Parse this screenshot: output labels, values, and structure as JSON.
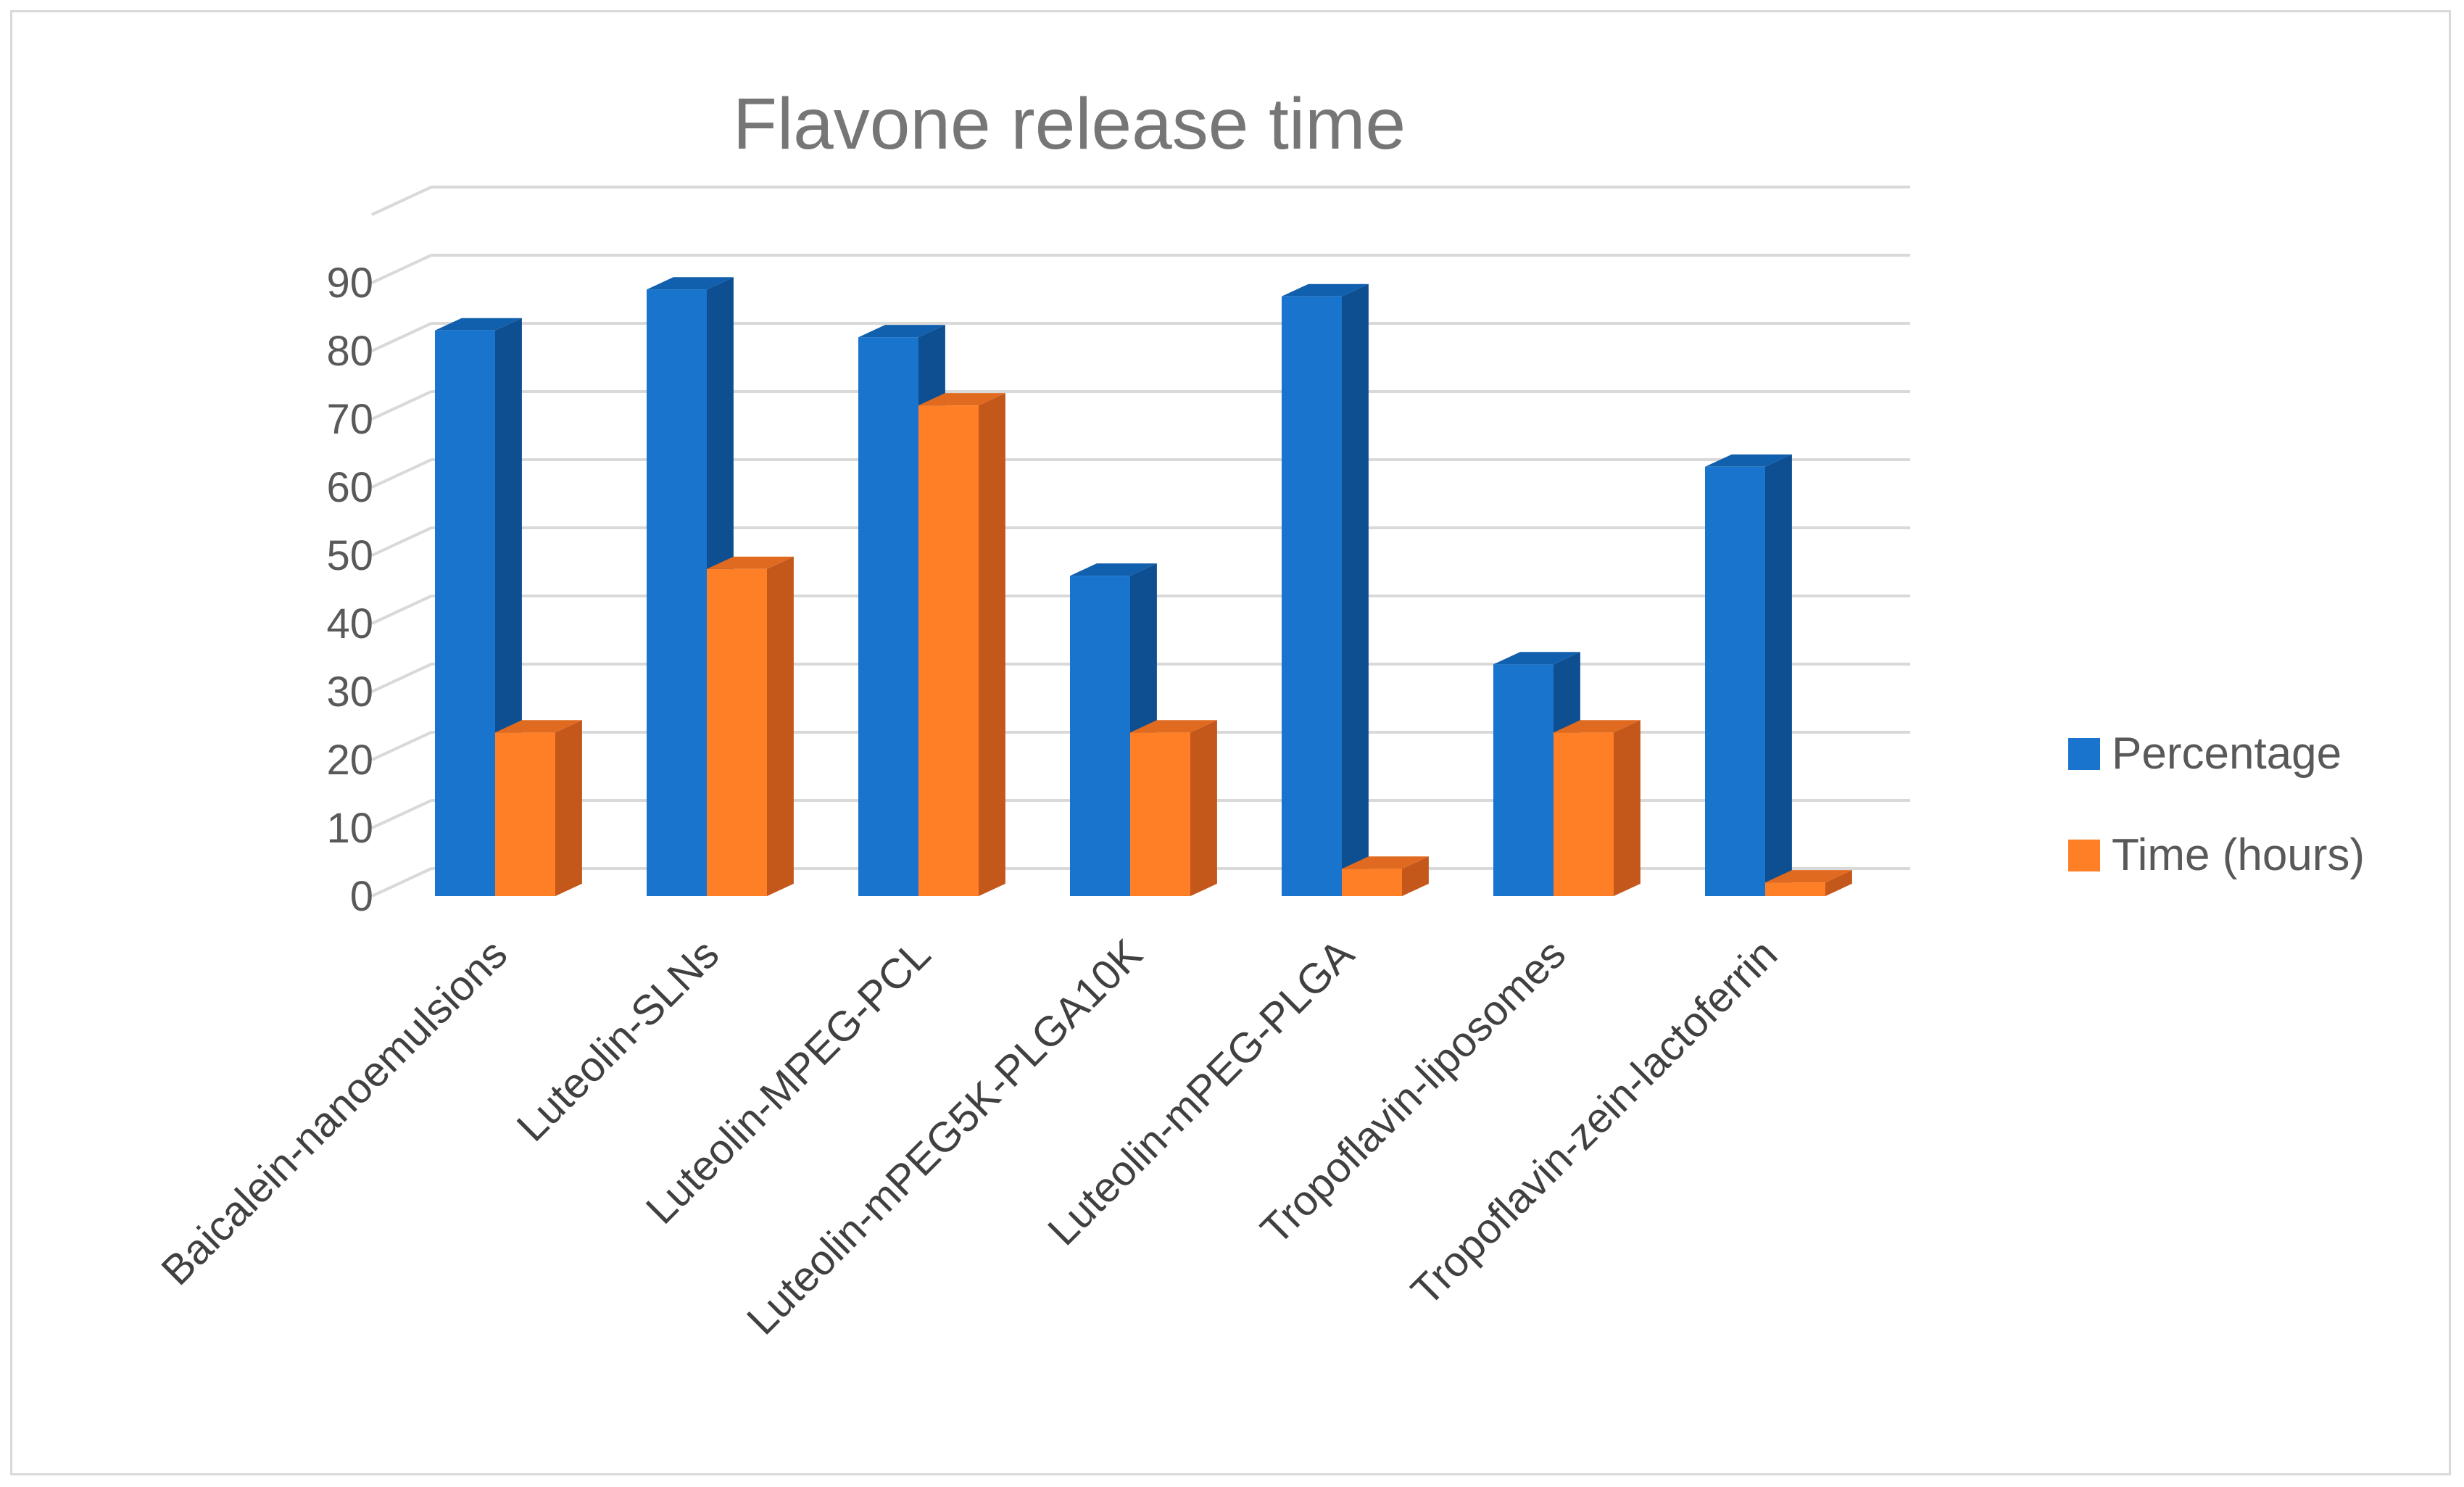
{
  "chart_data": {
    "type": "bar",
    "title": "Flavone release time",
    "categories": [
      "Baicalein-nanoemulsions",
      "Luteolin-SLNs",
      "Luteolin-MPEG-PCL",
      "Luteolin-mPEG5K-PLGA10K",
      "Luteolin-mPEG-PLGA",
      "Tropoflavin-liposomes",
      "Tropoflavin-zein-lactoferrin"
    ],
    "series": [
      {
        "name": "Percentage",
        "color": "#1874cd",
        "values": [
          83,
          89,
          82,
          47,
          88,
          34,
          63
        ]
      },
      {
        "name": "Time (hours)",
        "color": "#ff7f27",
        "values": [
          24,
          48,
          72,
          24,
          4,
          24,
          2
        ]
      }
    ],
    "yticks": [
      "0",
      "10",
      "20",
      "30",
      "40",
      "50",
      "60",
      "70",
      "80",
      "90"
    ],
    "ylim": [
      0,
      100
    ],
    "grid": true,
    "legend_position": "right",
    "style": "3d-clustered-column"
  }
}
